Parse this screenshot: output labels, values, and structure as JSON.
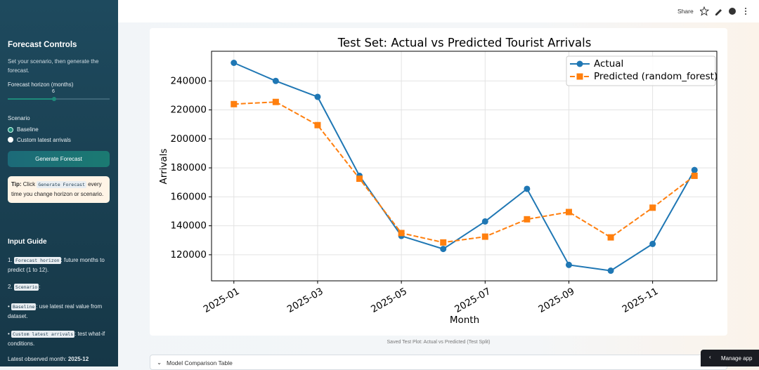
{
  "sidebar": {
    "title": "Forecast Controls",
    "intro": "Set your scenario, then generate the forecast.",
    "horizon_label": "Forecast horizon (months)",
    "horizon_value": 6,
    "scenario_label": "Scenario",
    "scenario_options": [
      "Baseline",
      "Custom latest arrivals"
    ],
    "button": "Generate Forecast",
    "tip": {
      "lead": "Tip:",
      "pre": "Click",
      "code": "Generate Forecast",
      "post": "every time you change horizon or scenario."
    },
    "guide": {
      "title": "Input Guide",
      "items": [
        {
          "code": "Forecast horizon",
          "text": ": future months to predict (1 to 12)."
        },
        {
          "code": "Scenario",
          "text": ":"
        }
      ],
      "bullets": [
        {
          "code": "Baseline",
          "text": ": use latest real value from dataset."
        },
        {
          "code": "Custom latest arrivals",
          "text": ": test what-if conditions."
        }
      ],
      "latest_label": "Latest observed month:",
      "latest_value": "2025-12"
    }
  },
  "toolbar": {
    "share": "Share"
  },
  "chart_data": {
    "type": "line",
    "title": "Test Set: Actual vs Predicted Tourist Arrivals",
    "x_label": "Month",
    "y_label": "Arrivals",
    "x": [
      "2025-01",
      "2025-02",
      "2025-03",
      "2025-04",
      "2025-05",
      "2025-06",
      "2025-07",
      "2025-08",
      "2025-09",
      "2025-10",
      "2025-11",
      "2025-12"
    ],
    "series": [
      {
        "name": "Actual",
        "color": "#1f77b4",
        "marker": "circle",
        "linestyle": "solid",
        "values": [
          252500,
          240000,
          229000,
          174500,
          133000,
          124000,
          143000,
          165500,
          113000,
          109000,
          127500,
          178500
        ]
      },
      {
        "name": "Predicted (random_forest)",
        "color": "#ff7f0e",
        "marker": "square",
        "linestyle": "dashed",
        "values": [
          224000,
          225500,
          209500,
          172500,
          135000,
          128500,
          132500,
          144500,
          149500,
          132000,
          152500,
          174500
        ]
      }
    ],
    "xlim": [
      "2024-12-15",
      "2025-12-17"
    ],
    "xticks": [
      "2025-01",
      "2025-03",
      "2025-05",
      "2025-07",
      "2025-09",
      "2025-11"
    ],
    "ylim": [
      102000,
      260500
    ],
    "yticks": [
      120000,
      140000,
      160000,
      180000,
      200000,
      220000,
      240000
    ],
    "grid": true,
    "legend": "upper right"
  },
  "caption": "Saved Test Plot: Actual vs Predicted (Test Split)",
  "expander": "Model Comparison Table",
  "manage_app": "Manage app"
}
